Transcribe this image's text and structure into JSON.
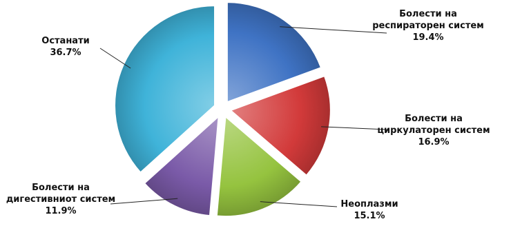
{
  "chart_data": {
    "type": "pie",
    "title": "",
    "legend": "none",
    "slices": [
      {
        "label_lines": [
          "Болести на",
          "респираторен систем"
        ],
        "value_label": "19.4%",
        "value": 19.4,
        "color": "#3f73c4"
      },
      {
        "label_lines": [
          "Болести на",
          "циркулаторен систем"
        ],
        "value_label": "16.9%",
        "value": 16.9,
        "color": "#d23a3a"
      },
      {
        "label_lines": [
          "Неоплазми"
        ],
        "value_label": "15.1%",
        "value": 15.1,
        "color": "#95c33f"
      },
      {
        "label_lines": [
          "Болести на",
          "дигестивниот систем"
        ],
        "value_label": "11.9%",
        "value": 11.9,
        "color": "#7a5aa8"
      },
      {
        "label_lines": [
          "Останати"
        ],
        "value_label": "36.7%",
        "value": 36.7,
        "color": "#3fb3d9"
      }
    ]
  }
}
